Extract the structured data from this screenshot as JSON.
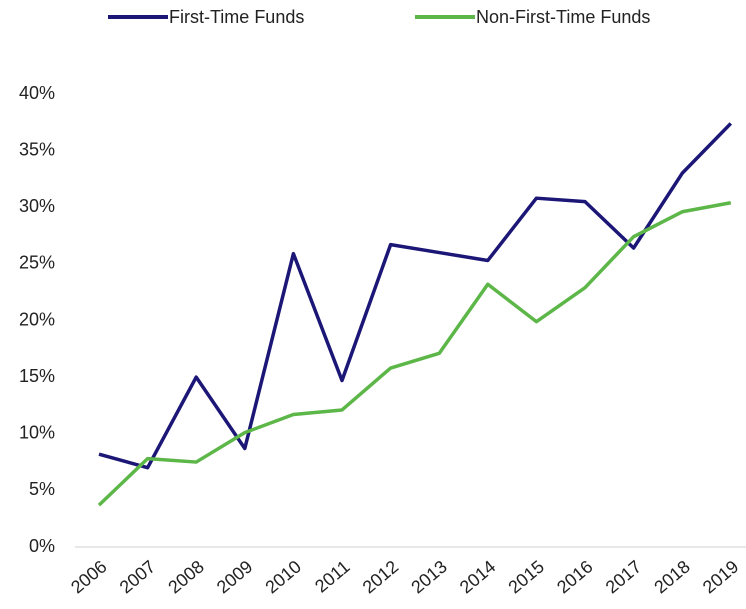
{
  "chart_data": {
    "type": "line",
    "categories": [
      "2006",
      "2007",
      "2008",
      "2009",
      "2010",
      "2011",
      "2012",
      "2013",
      "2014",
      "2015",
      "2016",
      "2017",
      "2018",
      "2019"
    ],
    "series": [
      {
        "name": "First-Time Funds",
        "color": "#1c1777",
        "values": [
          8.2,
          7.0,
          15.0,
          8.7,
          25.9,
          14.7,
          26.7,
          26.0,
          25.3,
          30.8,
          30.5,
          26.4,
          33.0,
          37.4
        ]
      },
      {
        "name": "Non-First-Time Funds",
        "color": "#5cb748",
        "values": [
          3.7,
          7.8,
          7.5,
          10.1,
          11.7,
          12.1,
          15.8,
          17.1,
          23.2,
          19.9,
          22.9,
          27.4,
          29.6,
          30.4
        ]
      }
    ],
    "ylim": [
      0,
      40
    ],
    "yticks": [
      {
        "value": 0,
        "label": "0%"
      },
      {
        "value": 5,
        "label": "5%"
      },
      {
        "value": 10,
        "label": "10%"
      },
      {
        "value": 15,
        "label": "15%"
      },
      {
        "value": 20,
        "label": "20%"
      },
      {
        "value": 25,
        "label": "25%"
      },
      {
        "value": 30,
        "label": "30%"
      },
      {
        "value": 35,
        "label": "35%"
      },
      {
        "value": 40,
        "label": "40%"
      }
    ],
    "legend": "top",
    "grid": false
  }
}
